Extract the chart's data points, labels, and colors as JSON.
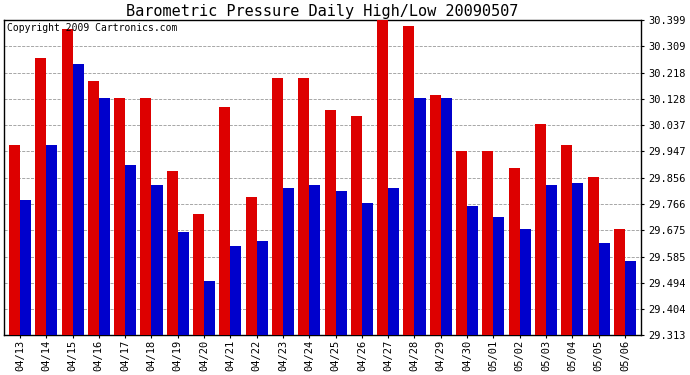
{
  "title": "Barometric Pressure Daily High/Low 20090507",
  "copyright": "Copyright 2009 Cartronics.com",
  "dates": [
    "04/13",
    "04/14",
    "04/15",
    "04/16",
    "04/17",
    "04/18",
    "04/19",
    "04/20",
    "04/21",
    "04/22",
    "04/23",
    "04/24",
    "04/25",
    "04/26",
    "04/27",
    "04/28",
    "04/29",
    "04/30",
    "05/01",
    "05/02",
    "05/03",
    "05/04",
    "05/05",
    "05/06"
  ],
  "highs": [
    29.97,
    30.27,
    30.37,
    30.19,
    30.13,
    30.13,
    29.88,
    29.73,
    30.1,
    29.79,
    30.2,
    30.2,
    30.09,
    30.07,
    30.43,
    30.38,
    30.14,
    29.95,
    29.95,
    29.89,
    30.04,
    29.97,
    29.86,
    29.68
  ],
  "lows": [
    29.78,
    29.97,
    30.25,
    30.13,
    29.9,
    29.83,
    29.67,
    29.5,
    29.62,
    29.64,
    29.82,
    29.83,
    29.81,
    29.77,
    29.82,
    30.13,
    30.13,
    29.76,
    29.72,
    29.68,
    29.83,
    29.84,
    29.63,
    29.57
  ],
  "high_color": "#dd0000",
  "low_color": "#0000cc",
  "background_color": "#ffffff",
  "plot_background": "#ffffff",
  "grid_color": "#999999",
  "ymin": 29.313,
  "ymax": 30.399,
  "yticks": [
    29.313,
    29.404,
    29.494,
    29.585,
    29.675,
    29.766,
    29.856,
    29.947,
    30.037,
    30.128,
    30.218,
    30.309,
    30.399
  ],
  "bar_width": 0.42,
  "title_fontsize": 11,
  "tick_fontsize": 7.5,
  "copyright_fontsize": 7
}
